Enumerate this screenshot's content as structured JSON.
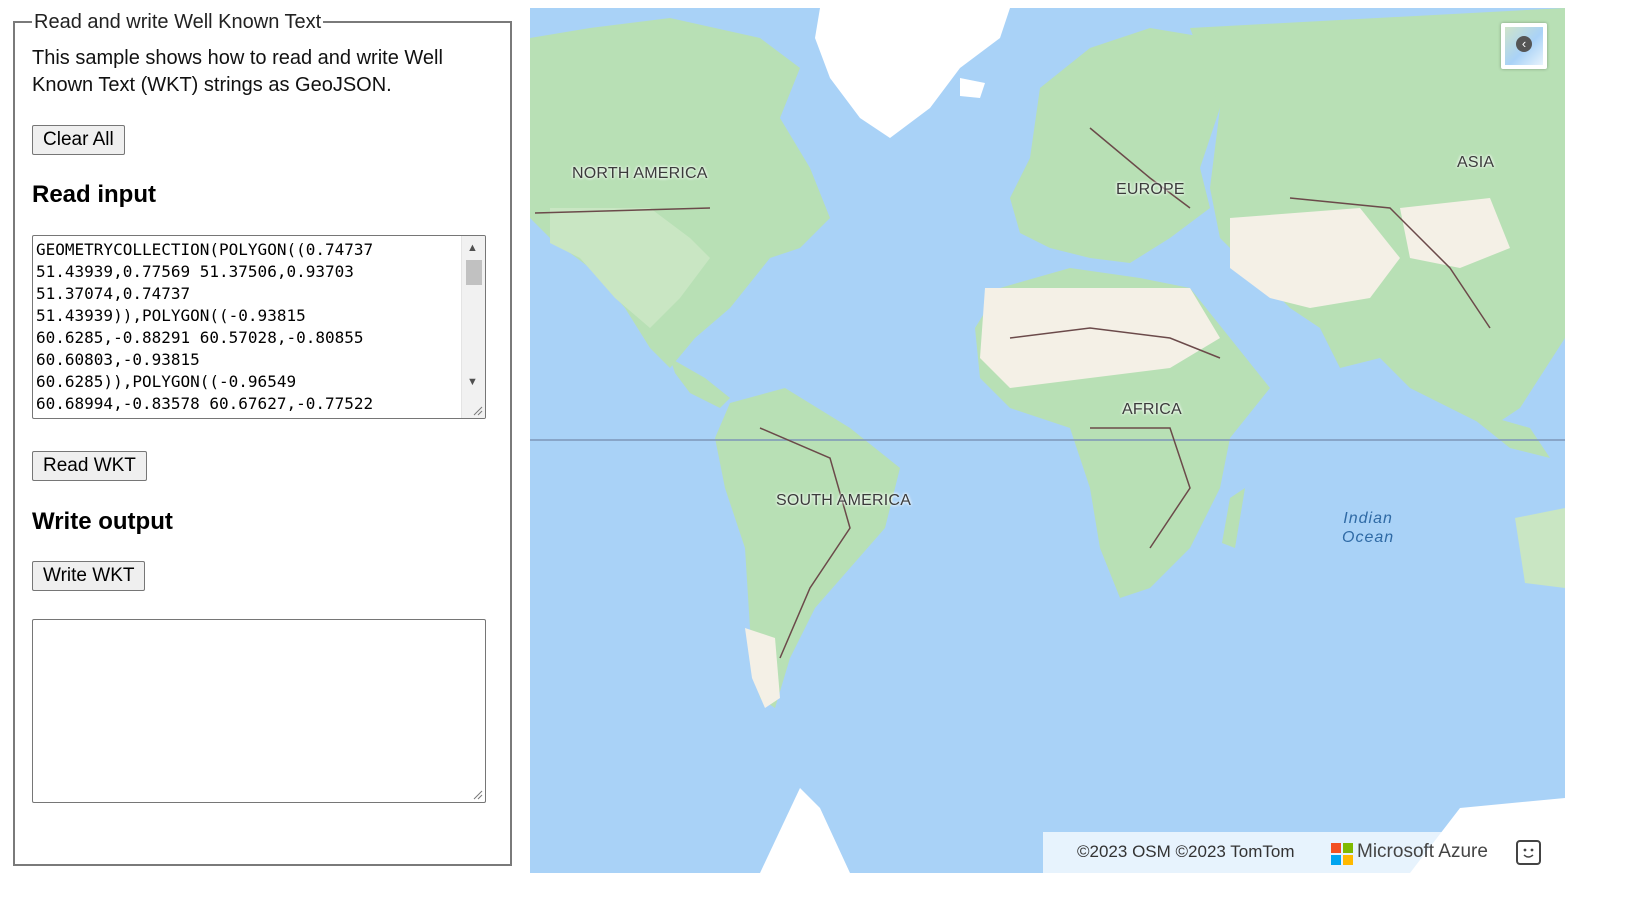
{
  "panel": {
    "legend": "Read and write Well Known Text",
    "description": "This sample shows how to read and write Well Known Text (WKT) strings as GeoJSON.",
    "clear_label": "Clear All",
    "read_heading": "Read input",
    "read_input_value": "GEOMETRYCOLLECTION(POLYGON((0.74737\n51.43939,0.77569 51.37506,0.93703\n51.37074,0.74737\n51.43939)),POLYGON((-0.93815\n60.6285,-0.88291 60.57028,-0.80855\n60.60803,-0.93815\n60.6285)),POLYGON((-0.96549\n60.68994,-0.83578 60.67627,-0.77522",
    "read_button_label": "Read WKT",
    "write_heading": "Write output",
    "write_button_label": "Write WKT",
    "write_output_value": ""
  },
  "map": {
    "labels": {
      "north_america": "NORTH AMERICA",
      "south_america": "SOUTH AMERICA",
      "europe": "EUROPE",
      "africa": "AFRICA",
      "asia": "ASIA",
      "indian_ocean": "Indian\nOcean"
    },
    "attribution": "©2023 OSM  ©2023 TomTom",
    "brand": "Microsoft Azure",
    "colors": {
      "ocean": "#a9d2f7",
      "land": "#b8e0b5",
      "desert": "#f4f0e6",
      "ice": "#ffffff",
      "border": "#6b4a4a"
    }
  }
}
